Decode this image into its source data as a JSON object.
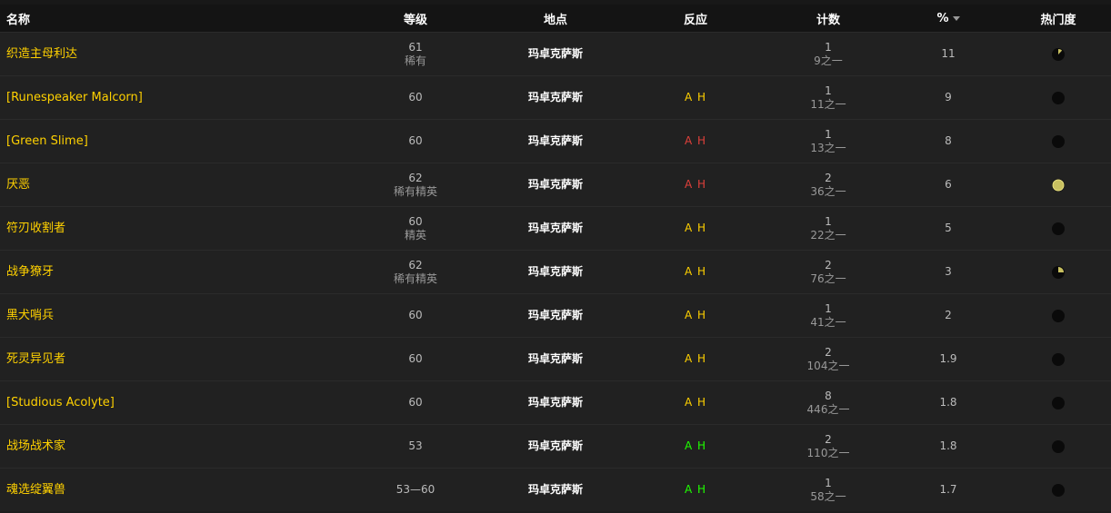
{
  "headers": {
    "name": "名称",
    "level": "等级",
    "location": "地点",
    "reaction": "反应",
    "count": "计数",
    "percent": "%",
    "popularity": "热门度"
  },
  "colors": {
    "name": "#ffd100",
    "hostile": "#e0403a",
    "neutral": "#ffd100",
    "friendly": "#1eff00",
    "pie": "#c8c060"
  },
  "rows": [
    {
      "name": "织造主母利达",
      "level": "61",
      "rank": "稀有",
      "location": "玛卓克萨斯",
      "reaction": "",
      "reaction_color": "neutral",
      "count": "1",
      "of": "9之一",
      "percent": "11",
      "popularity": 0.12
    },
    {
      "name": "[Runespeaker Malcorn]",
      "level": "60",
      "rank": "",
      "location": "玛卓克萨斯",
      "reaction": "A H",
      "reaction_color": "neutral",
      "count": "1",
      "of": "11之一",
      "percent": "9",
      "popularity": 0
    },
    {
      "name": "[Green Slime]",
      "level": "60",
      "rank": "",
      "location": "玛卓克萨斯",
      "reaction": "A H",
      "reaction_color": "hostile",
      "count": "1",
      "of": "13之一",
      "percent": "8",
      "popularity": 0
    },
    {
      "name": "厌恶",
      "level": "62",
      "rank": "稀有精英",
      "location": "玛卓克萨斯",
      "reaction": "A H",
      "reaction_color": "hostile",
      "count": "2",
      "of": "36之一",
      "percent": "6",
      "popularity": 1
    },
    {
      "name": "符刃收割者",
      "level": "60",
      "rank": "精英",
      "location": "玛卓克萨斯",
      "reaction": "A H",
      "reaction_color": "neutral",
      "count": "1",
      "of": "22之一",
      "percent": "5",
      "popularity": 0
    },
    {
      "name": "战争獠牙",
      "level": "62",
      "rank": "稀有精英",
      "location": "玛卓克萨斯",
      "reaction": "A H",
      "reaction_color": "neutral",
      "count": "2",
      "of": "76之一",
      "percent": "3",
      "popularity": 0.25
    },
    {
      "name": "黑犬哨兵",
      "level": "60",
      "rank": "",
      "location": "玛卓克萨斯",
      "reaction": "A H",
      "reaction_color": "neutral",
      "count": "1",
      "of": "41之一",
      "percent": "2",
      "popularity": 0
    },
    {
      "name": "死灵异见者",
      "level": "60",
      "rank": "",
      "location": "玛卓克萨斯",
      "reaction": "A H",
      "reaction_color": "neutral",
      "count": "2",
      "of": "104之一",
      "percent": "1.9",
      "popularity": 0
    },
    {
      "name": "[Studious Acolyte]",
      "level": "60",
      "rank": "",
      "location": "玛卓克萨斯",
      "reaction": "A H",
      "reaction_color": "neutral",
      "count": "8",
      "of": "446之一",
      "percent": "1.8",
      "popularity": 0
    },
    {
      "name": "战场战术家",
      "level": "53",
      "rank": "",
      "location": "玛卓克萨斯",
      "reaction": "A H",
      "reaction_color": "friendly",
      "count": "2",
      "of": "110之一",
      "percent": "1.8",
      "popularity": 0
    },
    {
      "name": "魂选绽翼兽",
      "level": "53—60",
      "rank": "",
      "location": "玛卓克萨斯",
      "reaction": "A H",
      "reaction_color": "friendly",
      "count": "1",
      "of": "58之一",
      "percent": "1.7",
      "popularity": 0
    }
  ]
}
